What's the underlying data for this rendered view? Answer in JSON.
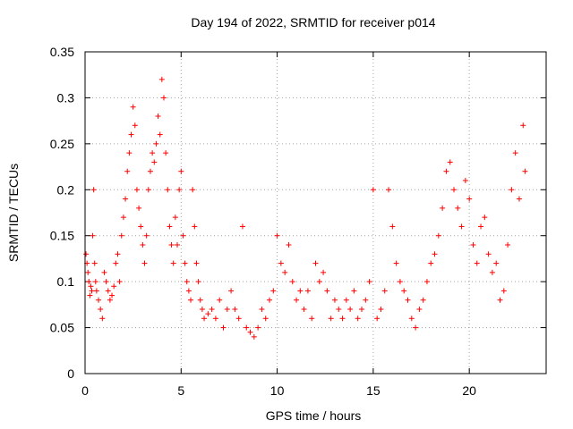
{
  "chart_data": {
    "type": "scatter",
    "title": "Day 194 of 2022, SRMTID for receiver p014",
    "xlabel": "GPS time / hours",
    "ylabel": "SRMTID / TECUs",
    "xlim": [
      0,
      24
    ],
    "ylim": [
      0,
      0.35
    ],
    "xticks": [
      0,
      5,
      10,
      15,
      20
    ],
    "yticks": [
      0,
      0.05,
      0.1,
      0.15,
      0.2,
      0.25,
      0.3,
      0.35
    ],
    "xtick_labels": [
      "0",
      "5",
      "10",
      "15",
      "20"
    ],
    "ytick_labels": [
      "0",
      "0.05",
      "0.1",
      "0.15",
      "0.2",
      "0.25",
      "0.3",
      "0.35"
    ],
    "grid": true,
    "marker": "+",
    "color": "#ff0000",
    "series": [
      {
        "name": "p014",
        "points": [
          [
            0.05,
            0.13
          ],
          [
            0.1,
            0.12
          ],
          [
            0.15,
            0.11
          ],
          [
            0.2,
            0.1
          ],
          [
            0.25,
            0.085
          ],
          [
            0.3,
            0.095
          ],
          [
            0.35,
            0.09
          ],
          [
            0.4,
            0.15
          ],
          [
            0.45,
            0.2
          ],
          [
            0.5,
            0.12
          ],
          [
            0.55,
            0.1
          ],
          [
            0.6,
            0.09
          ],
          [
            0.7,
            0.08
          ],
          [
            0.8,
            0.07
          ],
          [
            0.9,
            0.06
          ],
          [
            1.0,
            0.11
          ],
          [
            1.1,
            0.1
          ],
          [
            1.2,
            0.09
          ],
          [
            1.3,
            0.08
          ],
          [
            1.4,
            0.085
          ],
          [
            1.5,
            0.095
          ],
          [
            1.6,
            0.12
          ],
          [
            1.7,
            0.13
          ],
          [
            1.8,
            0.1
          ],
          [
            1.9,
            0.15
          ],
          [
            2.0,
            0.17
          ],
          [
            2.1,
            0.19
          ],
          [
            2.2,
            0.22
          ],
          [
            2.3,
            0.24
          ],
          [
            2.4,
            0.26
          ],
          [
            2.5,
            0.29
          ],
          [
            2.6,
            0.27
          ],
          [
            2.7,
            0.2
          ],
          [
            2.8,
            0.18
          ],
          [
            2.9,
            0.16
          ],
          [
            3.0,
            0.14
          ],
          [
            3.1,
            0.12
          ],
          [
            3.2,
            0.15
          ],
          [
            3.3,
            0.2
          ],
          [
            3.4,
            0.22
          ],
          [
            3.5,
            0.24
          ],
          [
            3.6,
            0.23
          ],
          [
            3.7,
            0.25
          ],
          [
            3.8,
            0.28
          ],
          [
            3.9,
            0.26
          ],
          [
            4.0,
            0.32
          ],
          [
            4.1,
            0.3
          ],
          [
            4.2,
            0.24
          ],
          [
            4.3,
            0.2
          ],
          [
            4.4,
            0.16
          ],
          [
            4.5,
            0.14
          ],
          [
            4.6,
            0.12
          ],
          [
            4.7,
            0.17
          ],
          [
            4.8,
            0.14
          ],
          [
            4.9,
            0.2
          ],
          [
            5.0,
            0.22
          ],
          [
            5.1,
            0.15
          ],
          [
            5.2,
            0.12
          ],
          [
            5.3,
            0.1
          ],
          [
            5.4,
            0.09
          ],
          [
            5.5,
            0.08
          ],
          [
            5.6,
            0.2
          ],
          [
            5.7,
            0.16
          ],
          [
            5.8,
            0.12
          ],
          [
            5.9,
            0.1
          ],
          [
            6.0,
            0.08
          ],
          [
            6.1,
            0.07
          ],
          [
            6.2,
            0.06
          ],
          [
            6.4,
            0.065
          ],
          [
            6.6,
            0.07
          ],
          [
            6.8,
            0.06
          ],
          [
            7.0,
            0.08
          ],
          [
            7.2,
            0.05
          ],
          [
            7.4,
            0.07
          ],
          [
            7.6,
            0.09
          ],
          [
            7.8,
            0.07
          ],
          [
            8.0,
            0.06
          ],
          [
            8.2,
            0.16
          ],
          [
            8.4,
            0.05
          ],
          [
            8.6,
            0.045
          ],
          [
            8.8,
            0.04
          ],
          [
            9.0,
            0.05
          ],
          [
            9.2,
            0.07
          ],
          [
            9.4,
            0.06
          ],
          [
            9.6,
            0.08
          ],
          [
            9.8,
            0.09
          ],
          [
            10.0,
            0.15
          ],
          [
            10.2,
            0.12
          ],
          [
            10.4,
            0.11
          ],
          [
            10.6,
            0.14
          ],
          [
            10.8,
            0.1
          ],
          [
            11.0,
            0.08
          ],
          [
            11.2,
            0.09
          ],
          [
            11.4,
            0.07
          ],
          [
            11.6,
            0.09
          ],
          [
            11.8,
            0.06
          ],
          [
            12.0,
            0.12
          ],
          [
            12.2,
            0.1
          ],
          [
            12.4,
            0.11
          ],
          [
            12.6,
            0.09
          ],
          [
            12.8,
            0.06
          ],
          [
            13.0,
            0.08
          ],
          [
            13.2,
            0.07
          ],
          [
            13.4,
            0.06
          ],
          [
            13.6,
            0.08
          ],
          [
            13.8,
            0.07
          ],
          [
            14.0,
            0.09
          ],
          [
            14.2,
            0.06
          ],
          [
            14.4,
            0.07
          ],
          [
            14.6,
            0.08
          ],
          [
            14.8,
            0.1
          ],
          [
            15.0,
            0.2
          ],
          [
            15.2,
            0.06
          ],
          [
            15.4,
            0.07
          ],
          [
            15.6,
            0.09
          ],
          [
            15.8,
            0.2
          ],
          [
            16.0,
            0.16
          ],
          [
            16.2,
            0.12
          ],
          [
            16.4,
            0.1
          ],
          [
            16.6,
            0.09
          ],
          [
            16.8,
            0.08
          ],
          [
            17.0,
            0.06
          ],
          [
            17.2,
            0.05
          ],
          [
            17.4,
            0.07
          ],
          [
            17.6,
            0.08
          ],
          [
            17.8,
            0.1
          ],
          [
            18.0,
            0.12
          ],
          [
            18.2,
            0.13
          ],
          [
            18.4,
            0.15
          ],
          [
            18.6,
            0.18
          ],
          [
            18.8,
            0.22
          ],
          [
            19.0,
            0.23
          ],
          [
            19.2,
            0.2
          ],
          [
            19.4,
            0.18
          ],
          [
            19.6,
            0.16
          ],
          [
            19.8,
            0.21
          ],
          [
            20.0,
            0.19
          ],
          [
            20.2,
            0.14
          ],
          [
            20.4,
            0.12
          ],
          [
            20.6,
            0.16
          ],
          [
            20.8,
            0.17
          ],
          [
            21.0,
            0.13
          ],
          [
            21.2,
            0.11
          ],
          [
            21.4,
            0.12
          ],
          [
            21.6,
            0.08
          ],
          [
            21.8,
            0.09
          ],
          [
            22.0,
            0.14
          ],
          [
            22.2,
            0.2
          ],
          [
            22.4,
            0.24
          ],
          [
            22.6,
            0.19
          ],
          [
            22.8,
            0.27
          ],
          [
            22.9,
            0.22
          ]
        ]
      }
    ]
  }
}
